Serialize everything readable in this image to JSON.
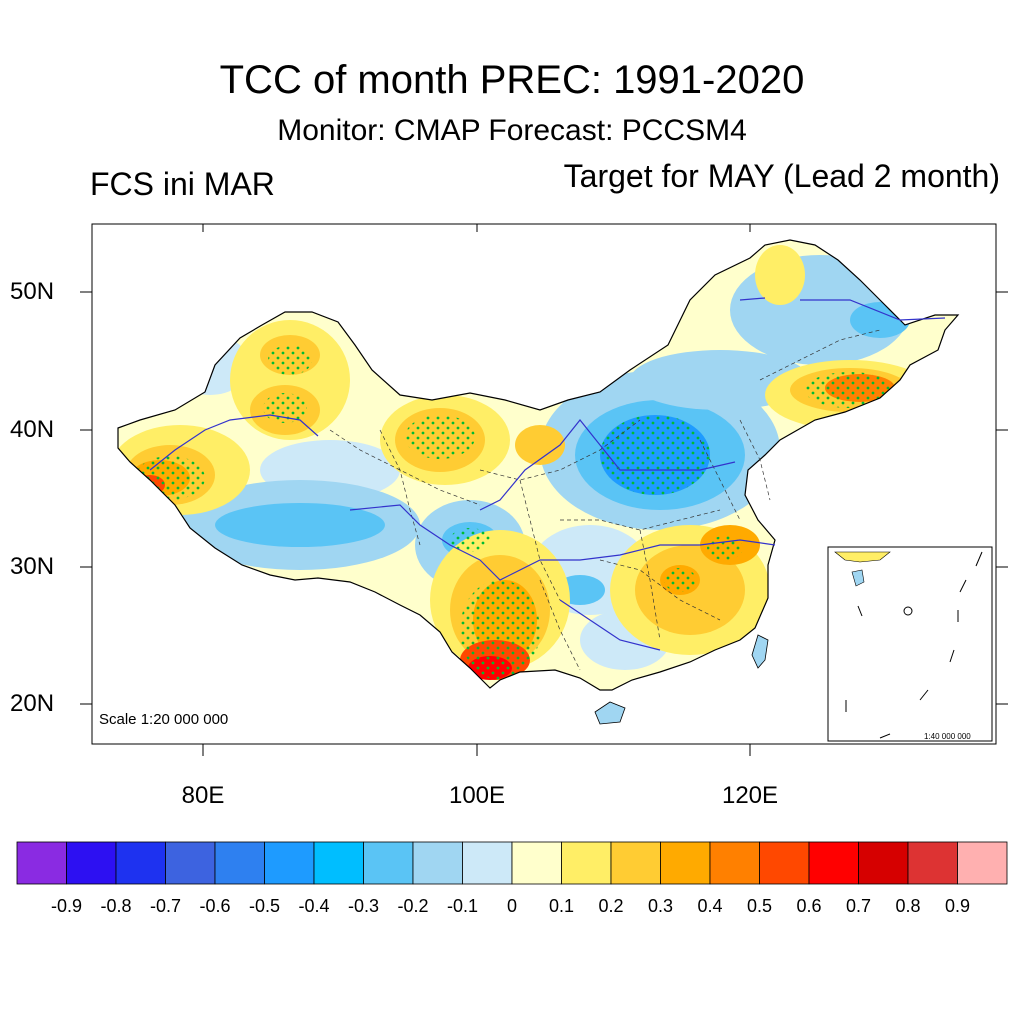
{
  "title": "TCC of month PREC: 1991-2020",
  "subtitle": "Monitor: CMAP   Forecast: PCCSM4",
  "left_subtitle": "FCS ini MAR",
  "right_subtitle": "Target for MAY (Lead 2 month)",
  "y_ticks": [
    "50N",
    "40N",
    "30N",
    "20N"
  ],
  "x_ticks": [
    "80E",
    "100E",
    "120E"
  ],
  "scale_main": "Scale 1:20 000 000",
  "scale_inset": "1:40 000 000",
  "colorbar": {
    "labels": [
      "-0.9",
      "-0.8",
      "-0.7",
      "-0.6",
      "-0.5",
      "-0.4",
      "-0.3",
      "-0.2",
      "-0.1",
      "0",
      "0.1",
      "0.2",
      "0.3",
      "0.4",
      "0.5",
      "0.6",
      "0.7",
      "0.8",
      "0.9"
    ],
    "colors": [
      "#8a2be2",
      "#2d10f2",
      "#1e32f0",
      "#3d63e0",
      "#2e80f0",
      "#1e9bff",
      "#00beff",
      "#5ac4f5",
      "#a0d6f2",
      "#cde9f8",
      "#ffffcc",
      "#ffee66",
      "#ffcc33",
      "#ffaa00",
      "#ff8000",
      "#ff4800",
      "#ff0000",
      "#d60000",
      "#dd3333",
      "#ffb0b0"
    ]
  },
  "colors": {
    "border": "#000000",
    "river": "#3333cc",
    "stipple": "#00bb33",
    "land_base": "#ffffcc"
  }
}
